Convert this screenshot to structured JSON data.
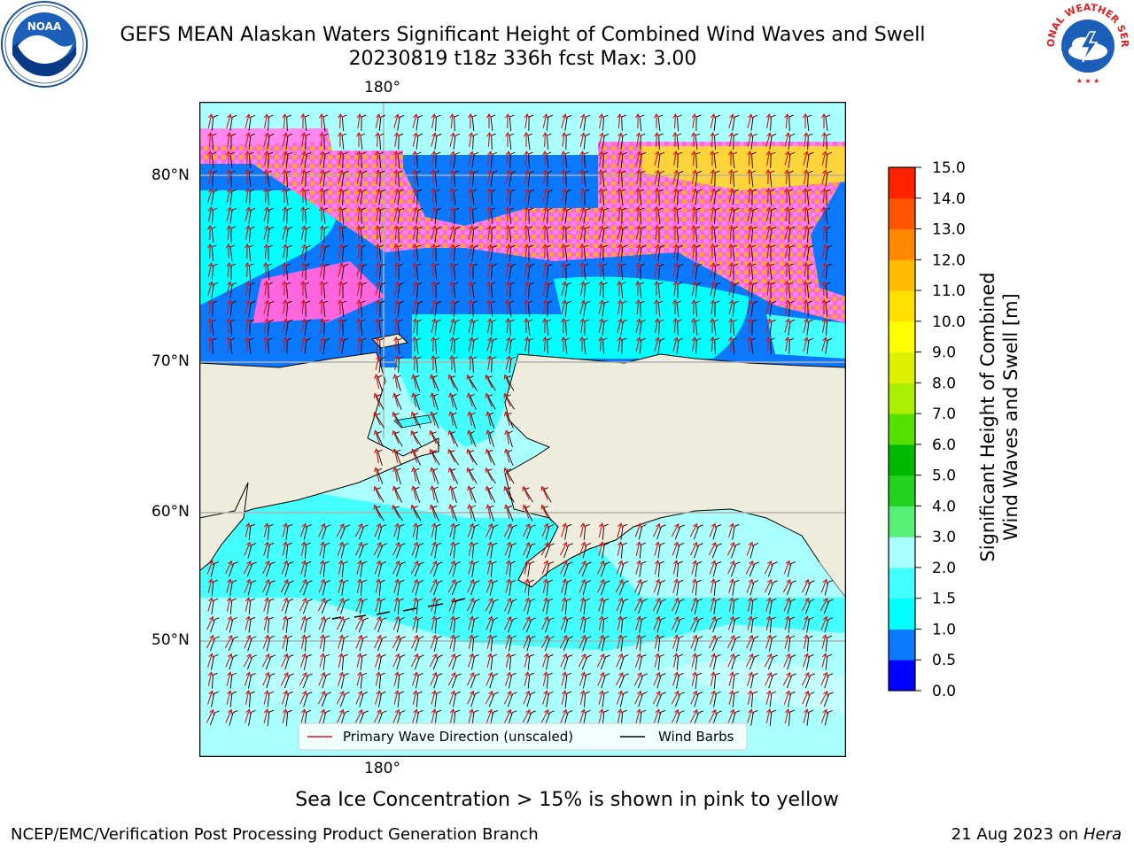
{
  "title": {
    "line1": "GEFS MEAN Alaskan Waters Significant Height of Combined Wind Waves and Swell",
    "line2": "20230819 t18z 336h fcst   Max: 3.00"
  },
  "logos": {
    "left": "NOAA",
    "right": "NATIONAL WEATHER SERVICE"
  },
  "map": {
    "longitude_label_top": "180°",
    "longitude_label_bottom": "180°",
    "latitude_labels": [
      "80°N",
      "70°N",
      "60°N",
      "50°N"
    ],
    "colors": {
      "land": "#eeecdc",
      "grid": "#b0b0b0",
      "ice_pink": "#ff66dd",
      "ice_orange": "#ffaa33",
      "ice_yellow": "#ffee22",
      "arrow": "#e01010",
      "barb": "#000000"
    }
  },
  "legend": {
    "wave_direction_label": "Primary Wave Direction (unscaled)",
    "wind_barbs_label": "Wind Barbs"
  },
  "colorbar": {
    "label_line1": "Significant Height of Combined",
    "label_line2": "Wind Waves and Swell [m]",
    "ticks": [
      "0.0",
      "0.5",
      "1.0",
      "1.5",
      "2.0",
      "3.0",
      "4.0",
      "5.0",
      "6.0",
      "7.0",
      "8.0",
      "9.0",
      "10.0",
      "11.0",
      "12.0",
      "13.0",
      "14.0",
      "15.0"
    ],
    "colors": [
      "#0000ff",
      "#0a78ff",
      "#00ffff",
      "#44ffff",
      "#aaffff",
      "#55f075",
      "#22d21e",
      "#00b800",
      "#55e000",
      "#aaee00",
      "#ddf000",
      "#ffff00",
      "#ffe000",
      "#ffbb00",
      "#ff8800",
      "#ff5500",
      "#ff2200"
    ]
  },
  "caption": "Sea Ice Concentration > 15% is shown in pink to yellow",
  "footer": {
    "left": "NCEP/EMC/Verification Post Processing Product Generation Branch",
    "right_date": "21 Aug 2023 on",
    "right_host": "Hera"
  }
}
